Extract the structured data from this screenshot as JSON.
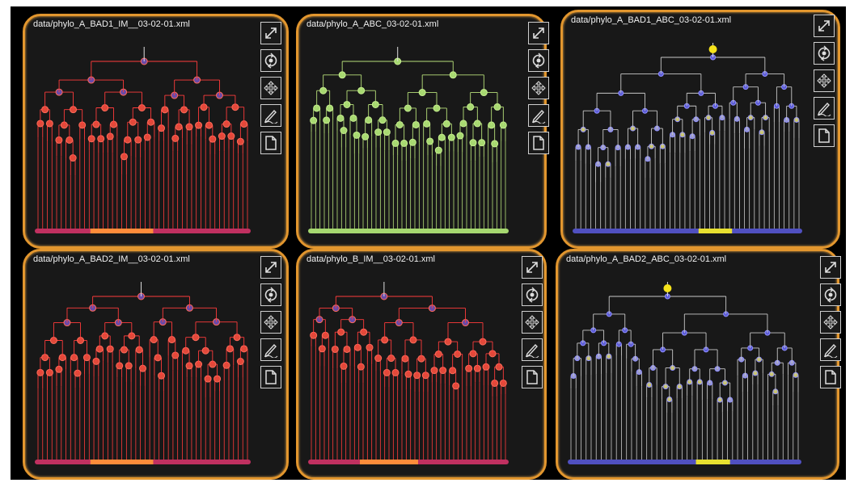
{
  "panels": [
    {
      "title": "data/phylo_A_BAD1_IM__03-02-01.xml",
      "scheme": "red"
    },
    {
      "title": "data/phylo_A_ABC_03-02-01.xml",
      "scheme": "green"
    },
    {
      "title": "data/phylo_A_BAD1_ABC_03-02-01.xml",
      "scheme": "blue"
    },
    {
      "title": "data/phylo_A_BAD2_IM__03-02-01.xml",
      "scheme": "red"
    },
    {
      "title": "data/phylo_B_IM__03-02-01.xml",
      "scheme": "red"
    },
    {
      "title": "data/phylo_A_BAD2_ABC_03-02-01.xml",
      "scheme": "blue"
    }
  ],
  "toolbar_icons": [
    "expand-icon",
    "rotate-icon",
    "move-icon",
    "pencil-icon",
    "page-icon"
  ],
  "colors": {
    "frame": "#e2962e",
    "panel_bg": "#181818",
    "red_branch": "#ff3b3b",
    "green_branch": "#b7e07a",
    "blue_branch": "#c8c8c8",
    "blue_node": "#5a5ad8",
    "root_yellow": "#f5e21a"
  }
}
